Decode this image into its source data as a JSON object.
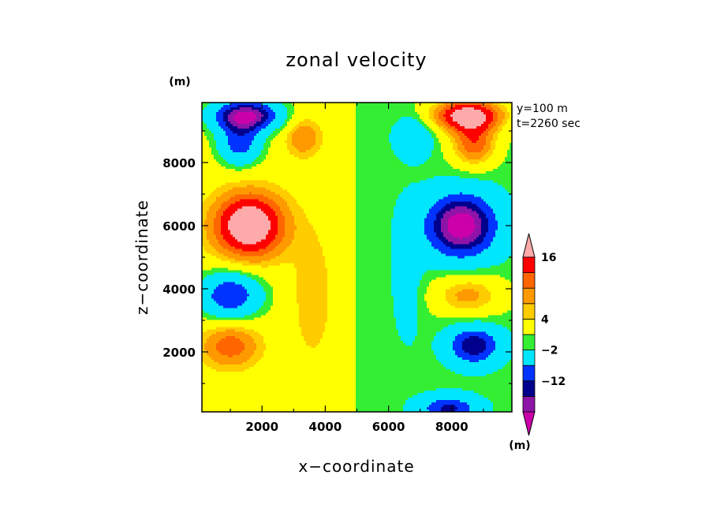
{
  "chart_data": {
    "type": "heatmap",
    "title": "zonal velocity",
    "xlabel": "x−coordinate",
    "ylabel": "z−coordinate",
    "x_unit": "(m)",
    "y_unit": "(m)",
    "colorbar_unit": "(m)",
    "xlim": [
      100,
      9900
    ],
    "ylim": [
      100,
      9900
    ],
    "x_ticks": [
      2000,
      4000,
      6000,
      8000
    ],
    "y_ticks": [
      2000,
      4000,
      6000,
      8000
    ],
    "x_tick_labels": [
      "2000",
      "4000",
      "6000",
      "8000"
    ],
    "y_tick_labels": [
      "2000",
      "4000",
      "6000",
      "8000"
    ],
    "annotations": [
      "y=100  m",
      "t=2260 sec"
    ],
    "grid": false,
    "legend_position": "right",
    "colorbar": {
      "levels_colors": [
        "#cc00aa",
        "#8e14a8",
        "#00008c",
        "#0033ff",
        "#00e6ff",
        "#33ee33",
        "#ffff00",
        "#ffcc00",
        "#ff9900",
        "#ff6600",
        "#ff0000",
        "#ffaaaa"
      ],
      "labels": [
        {
          "text": "16",
          "value": 16
        },
        {
          "text": "4",
          "value": 4
        },
        {
          "text": "−2",
          "value": -2
        },
        {
          "text": "−12",
          "value": -12
        }
      ]
    },
    "field": [
      {
        "x": 1500,
        "z": 9500,
        "value": -20,
        "sx": 1100,
        "sz": 500
      },
      {
        "x": 8500,
        "z": 9500,
        "value": 20,
        "sx": 1100,
        "sz": 500
      },
      {
        "x": 1300,
        "z": 8600,
        "value": -12,
        "sx": 700,
        "sz": 700
      },
      {
        "x": 8700,
        "z": 8600,
        "value": 12,
        "sx": 700,
        "sz": 700
      },
      {
        "x": 3300,
        "z": 8800,
        "value": 7,
        "sx": 550,
        "sz": 600
      },
      {
        "x": 6800,
        "z": 8800,
        "value": -7,
        "sx": 550,
        "sz": 600
      },
      {
        "x": 1600,
        "z": 6000,
        "value": 20,
        "sx": 1100,
        "sz": 1000
      },
      {
        "x": 8300,
        "z": 6000,
        "value": -20,
        "sx": 1100,
        "sz": 1000
      },
      {
        "x": 1000,
        "z": 3800,
        "value": -14,
        "sx": 1000,
        "sz": 750
      },
      {
        "x": 8500,
        "z": 3800,
        "value": 8,
        "sx": 1100,
        "sz": 650
      },
      {
        "x": 1000,
        "z": 2200,
        "value": 9,
        "sx": 900,
        "sz": 700
      },
      {
        "x": 8700,
        "z": 2200,
        "value": -14,
        "sx": 800,
        "sz": 600
      },
      {
        "x": 7900,
        "z": 200,
        "value": -12,
        "sx": 900,
        "sz": 400
      },
      {
        "x": 3600,
        "z": 3800,
        "value": 4,
        "sx": 600,
        "sz": 2000
      },
      {
        "x": 6600,
        "z": 4500,
        "value": -3,
        "sx": 500,
        "sz": 2200
      }
    ]
  }
}
